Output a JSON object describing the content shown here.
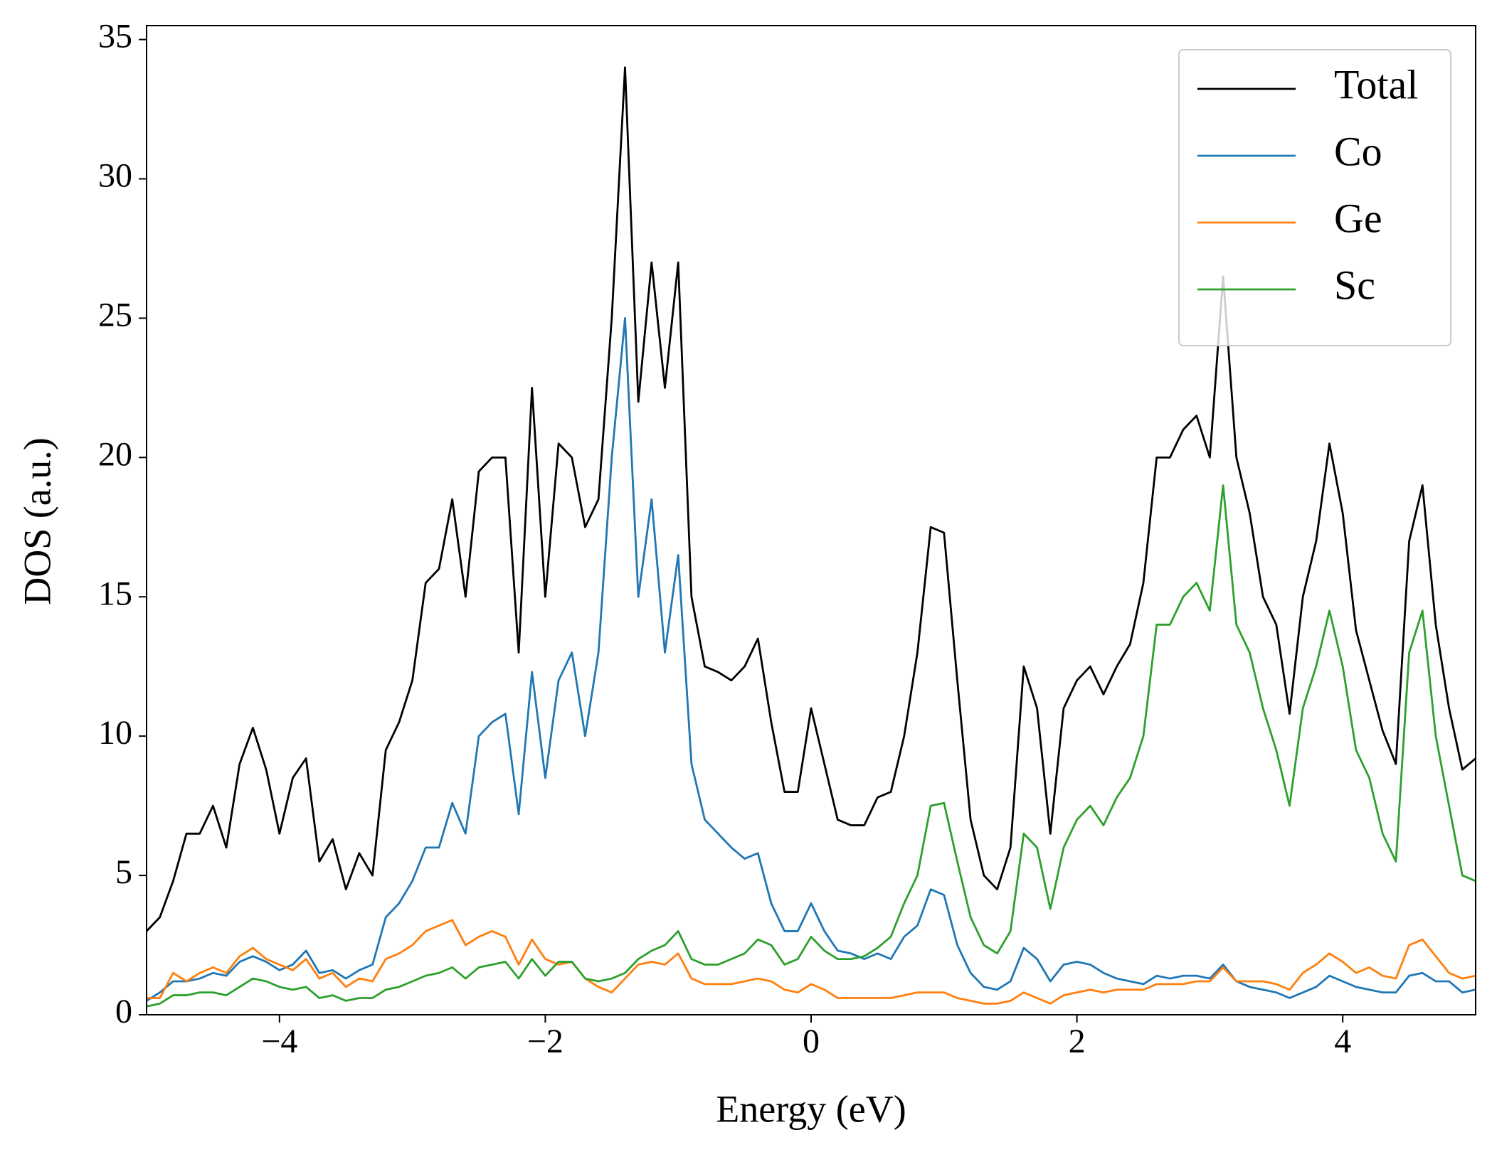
{
  "chart_data": {
    "type": "line",
    "xlabel": "Energy (eV)",
    "ylabel": "DOS (a.u.)",
    "xlim": [
      -5,
      5
    ],
    "ylim": [
      0,
      35.5
    ],
    "xticks": [
      {
        "value": -4,
        "label": "−4"
      },
      {
        "value": -2,
        "label": "−2"
      },
      0,
      2,
      4
    ],
    "yticks": [
      0,
      5,
      10,
      15,
      20,
      25,
      30,
      35
    ],
    "legend": "upper right",
    "grid": false,
    "x": [
      -5.0,
      -4.9,
      -4.8,
      -4.7,
      -4.6,
      -4.5,
      -4.4,
      -4.3,
      -4.2,
      -4.1,
      -4.0,
      -3.9,
      -3.8,
      -3.7,
      -3.6,
      -3.5,
      -3.4,
      -3.3,
      -3.2,
      -3.1,
      -3.0,
      -2.9,
      -2.8,
      -2.7,
      -2.6,
      -2.5,
      -2.4,
      -2.3,
      -2.2,
      -2.1,
      -2.0,
      -1.9,
      -1.8,
      -1.7,
      -1.6,
      -1.5,
      -1.4,
      -1.3,
      -1.2,
      -1.1,
      -1.0,
      -0.9,
      -0.8,
      -0.7,
      -0.6,
      -0.5,
      -0.4,
      -0.3,
      -0.2,
      -0.1,
      0.0,
      0.1,
      0.2,
      0.3,
      0.4,
      0.5,
      0.6,
      0.7,
      0.8,
      0.9,
      1.0,
      1.1,
      1.2,
      1.3,
      1.4,
      1.5,
      1.6,
      1.7,
      1.8,
      1.9,
      2.0,
      2.1,
      2.2,
      2.3,
      2.4,
      2.5,
      2.6,
      2.7,
      2.8,
      2.9,
      3.0,
      3.1,
      3.2,
      3.3,
      3.4,
      3.5,
      3.6,
      3.7,
      3.8,
      3.9,
      4.0,
      4.1,
      4.2,
      4.3,
      4.4,
      4.5,
      4.6,
      4.7,
      4.8,
      4.9,
      5.0
    ],
    "series": [
      {
        "name": "Total",
        "color": "#000000",
        "values": [
          3.0,
          3.5,
          4.8,
          6.5,
          6.5,
          7.5,
          6.0,
          9.0,
          10.3,
          8.8,
          6.5,
          8.5,
          9.2,
          5.5,
          6.3,
          4.5,
          5.8,
          5.0,
          9.5,
          10.5,
          12.0,
          15.5,
          16.0,
          18.5,
          15.0,
          19.5,
          20.0,
          20.0,
          13.0,
          22.5,
          15.0,
          20.5,
          20.0,
          17.5,
          18.5,
          25.0,
          34.0,
          22.0,
          27.0,
          22.5,
          27.0,
          15.0,
          12.5,
          12.3,
          12.0,
          12.5,
          13.5,
          10.5,
          8.0,
          8.0,
          11.0,
          9.0,
          7.0,
          6.8,
          6.8,
          7.8,
          8.0,
          10.0,
          13.0,
          17.5,
          17.3,
          12.0,
          7.0,
          5.0,
          4.5,
          6.0,
          12.5,
          11.0,
          6.5,
          11.0,
          12.0,
          12.5,
          11.5,
          12.5,
          13.3,
          15.5,
          20.0,
          20.0,
          21.0,
          21.5,
          20.0,
          26.5,
          20.0,
          18.0,
          15.0,
          14.0,
          10.8,
          15.0,
          17.0,
          20.5,
          18.0,
          13.8,
          12.0,
          10.2,
          9.0,
          17.0,
          19.0,
          14.0,
          11.0,
          8.8,
          9.2
        ]
      },
      {
        "name": "Co",
        "color": "#1f77b4",
        "values": [
          0.5,
          0.8,
          1.2,
          1.2,
          1.3,
          1.5,
          1.4,
          1.9,
          2.1,
          1.9,
          1.6,
          1.8,
          2.3,
          1.5,
          1.6,
          1.3,
          1.6,
          1.8,
          3.5,
          4.0,
          4.8,
          6.0,
          6.0,
          7.6,
          6.5,
          10.0,
          10.5,
          10.8,
          7.2,
          12.3,
          8.5,
          12.0,
          13.0,
          10.0,
          13.0,
          20.0,
          25.0,
          15.0,
          18.5,
          13.0,
          16.5,
          9.0,
          7.0,
          6.5,
          6.0,
          5.6,
          5.8,
          4.0,
          3.0,
          3.0,
          4.0,
          3.0,
          2.3,
          2.2,
          2.0,
          2.2,
          2.0,
          2.8,
          3.2,
          4.5,
          4.3,
          2.5,
          1.5,
          1.0,
          0.9,
          1.2,
          2.4,
          2.0,
          1.2,
          1.8,
          1.9,
          1.8,
          1.5,
          1.3,
          1.2,
          1.1,
          1.4,
          1.3,
          1.4,
          1.4,
          1.3,
          1.8,
          1.2,
          1.0,
          0.9,
          0.8,
          0.6,
          0.8,
          1.0,
          1.4,
          1.2,
          1.0,
          0.9,
          0.8,
          0.8,
          1.4,
          1.5,
          1.2,
          1.2,
          0.8,
          0.9
        ]
      },
      {
        "name": "Ge",
        "color": "#ff7f0e",
        "values": [
          0.6,
          0.6,
          1.5,
          1.2,
          1.5,
          1.7,
          1.5,
          2.1,
          2.4,
          2.0,
          1.8,
          1.6,
          2.0,
          1.3,
          1.5,
          1.0,
          1.3,
          1.2,
          2.0,
          2.2,
          2.5,
          3.0,
          3.2,
          3.4,
          2.5,
          2.8,
          3.0,
          2.8,
          1.8,
          2.7,
          2.0,
          1.8,
          1.9,
          1.3,
          1.0,
          0.8,
          1.3,
          1.8,
          1.9,
          1.8,
          2.2,
          1.3,
          1.1,
          1.1,
          1.1,
          1.2,
          1.3,
          1.2,
          0.9,
          0.8,
          1.1,
          0.9,
          0.6,
          0.6,
          0.6,
          0.6,
          0.6,
          0.7,
          0.8,
          0.8,
          0.8,
          0.6,
          0.5,
          0.4,
          0.4,
          0.5,
          0.8,
          0.6,
          0.4,
          0.7,
          0.8,
          0.9,
          0.8,
          0.9,
          0.9,
          0.9,
          1.1,
          1.1,
          1.1,
          1.2,
          1.2,
          1.7,
          1.2,
          1.2,
          1.2,
          1.1,
          0.9,
          1.5,
          1.8,
          2.2,
          1.9,
          1.5,
          1.7,
          1.4,
          1.3,
          2.5,
          2.7,
          2.1,
          1.5,
          1.3,
          1.4
        ]
      },
      {
        "name": "Sc",
        "color": "#2ca02c",
        "values": [
          0.3,
          0.4,
          0.7,
          0.7,
          0.8,
          0.8,
          0.7,
          1.0,
          1.3,
          1.2,
          1.0,
          0.9,
          1.0,
          0.6,
          0.7,
          0.5,
          0.6,
          0.6,
          0.9,
          1.0,
          1.2,
          1.4,
          1.5,
          1.7,
          1.3,
          1.7,
          1.8,
          1.9,
          1.3,
          2.0,
          1.4,
          1.9,
          1.9,
          1.3,
          1.2,
          1.3,
          1.5,
          2.0,
          2.3,
          2.5,
          3.0,
          2.0,
          1.8,
          1.8,
          2.0,
          2.2,
          2.7,
          2.5,
          1.8,
          2.0,
          2.8,
          2.3,
          2.0,
          2.0,
          2.1,
          2.4,
          2.8,
          4.0,
          5.0,
          7.5,
          7.6,
          5.5,
          3.5,
          2.5,
          2.2,
          3.0,
          6.5,
          6.0,
          3.8,
          6.0,
          7.0,
          7.5,
          6.8,
          7.8,
          8.5,
          10.0,
          14.0,
          14.0,
          15.0,
          15.5,
          14.5,
          19.0,
          14.0,
          13.0,
          11.0,
          9.5,
          7.5,
          11.0,
          12.5,
          14.5,
          12.5,
          9.5,
          8.5,
          6.5,
          5.5,
          13.0,
          14.5,
          10.0,
          7.5,
          5.0,
          4.8
        ]
      }
    ]
  }
}
